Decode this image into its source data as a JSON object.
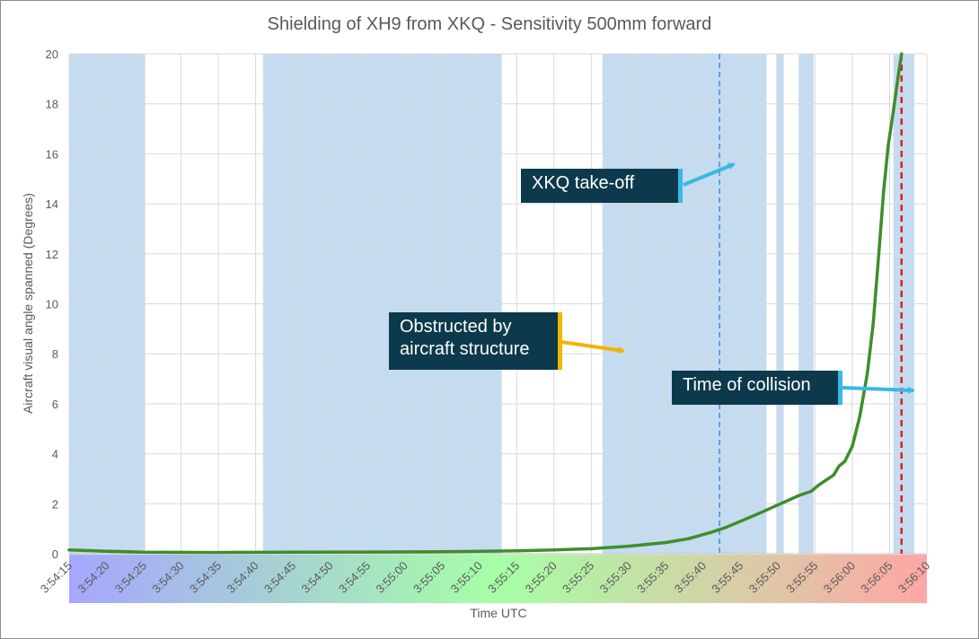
{
  "chart_data": {
    "type": "line",
    "title": "Shielding of XH9 from XKQ - Sensitivity 500mm forward",
    "xlabel": "Time UTC",
    "ylabel": "Aircraft visual angle spanned (Degrees)",
    "x_range": [
      "3:54:15",
      "3:56:10"
    ],
    "ylim": [
      0,
      20
    ],
    "y_ticks": [
      0,
      2,
      4,
      6,
      8,
      10,
      12,
      14,
      16,
      18,
      20
    ],
    "x_tick_labels": [
      "3:54:15",
      "3:54:20",
      "3:54:25",
      "3:54:30",
      "3:54:35",
      "3:54:40",
      "3:54:45",
      "3:54:50",
      "3:54:55",
      "3:55:00",
      "3:55:05",
      "3:55:10",
      "3:55:15",
      "3:55:20",
      "3:55:25",
      "3:55:30",
      "3:55:35",
      "3:55:40",
      "3:55:45",
      "3:55:50",
      "3:55:55",
      "3:56:00",
      "3:56:05",
      "3:56:10"
    ],
    "x_tick_seconds": [
      0,
      5,
      10,
      15,
      20,
      25,
      30,
      35,
      40,
      45,
      50,
      55,
      60,
      65,
      70,
      75,
      80,
      85,
      90,
      95,
      100,
      105,
      110,
      115
    ],
    "grid": true,
    "series": [
      {
        "color": "#3e8e2a",
        "x_seconds": [
          0,
          5,
          10,
          20,
          30,
          40,
          50,
          55,
          60,
          65,
          70,
          75,
          80,
          83,
          86,
          88,
          90,
          92,
          93.5,
          95,
          96.5,
          98,
          99.5,
          100.5,
          101.5,
          102.5,
          103.2,
          104,
          105,
          106,
          107,
          107.8,
          108.5,
          109.2,
          109.8,
          110.5,
          111.2,
          111.6
        ],
        "values": [
          0.15,
          0.1,
          0.06,
          0.05,
          0.06,
          0.07,
          0.08,
          0.1,
          0.12,
          0.15,
          0.2,
          0.3,
          0.45,
          0.6,
          0.85,
          1.05,
          1.3,
          1.55,
          1.75,
          1.95,
          2.15,
          2.35,
          2.5,
          2.75,
          2.95,
          3.15,
          3.5,
          3.7,
          4.3,
          5.5,
          7.2,
          9.2,
          11.8,
          14.5,
          16.3,
          17.7,
          19.2,
          20
        ]
      }
    ],
    "shaded_intervals_seconds": [
      [
        0,
        10.2
      ],
      [
        26,
        58
      ],
      [
        71.5,
        93.5
      ],
      [
        94.8,
        95.8
      ],
      [
        97.8,
        99.8
      ],
      [
        110.5,
        113.3
      ]
    ],
    "shaded_color": "#c5dbf0",
    "vertical_markers": [
      {
        "x_seconds": 87.2,
        "color": "#4a8fd9",
        "style": "dashed"
      },
      {
        "x_seconds": 111.6,
        "color": "#e02020",
        "style": "dashed"
      }
    ],
    "annotations": [
      {
        "text": "XKQ take-off",
        "accent": "#39b9e3"
      },
      {
        "text": "Obstructed by aircraft structure",
        "accent": "#f4b400"
      },
      {
        "text": "Time of collision",
        "accent": "#39b9e3"
      }
    ],
    "gradient_band_colors": [
      "#a6a6ff",
      "#a6ffa6",
      "#ffa6a6"
    ]
  }
}
